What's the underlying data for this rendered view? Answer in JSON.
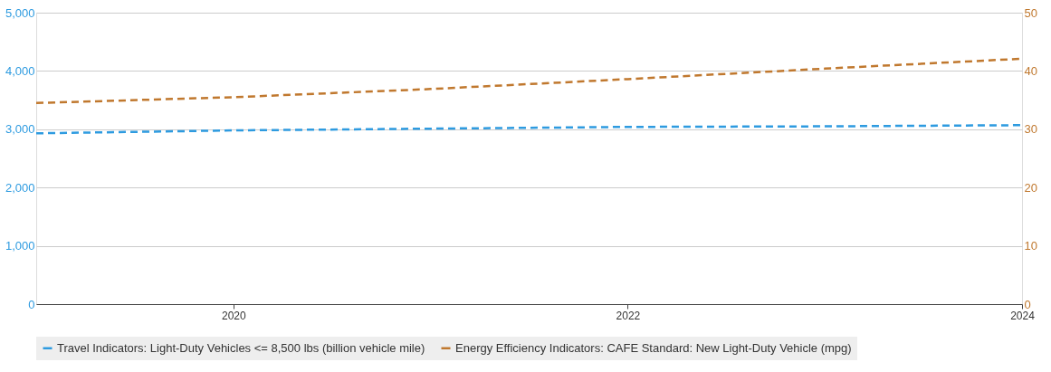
{
  "chart_data": {
    "type": "line",
    "x": [
      2019,
      2020,
      2021,
      2022,
      2023,
      2024
    ],
    "xlim": [
      2019,
      2024
    ],
    "xticks": [
      2020,
      2022,
      2024
    ],
    "ylim": [
      0,
      5000
    ],
    "yticks": [
      0,
      {
        "value": 1000,
        "label": "1,000"
      },
      {
        "value": 2000,
        "label": "2,000"
      },
      {
        "value": 3000,
        "label": "3,000"
      },
      {
        "value": 4000,
        "label": "4,000"
      },
      {
        "value": 5000,
        "label": "5,000"
      }
    ],
    "y2lim": [
      0,
      50
    ],
    "y2ticks": [
      0,
      10,
      20,
      30,
      40,
      50
    ],
    "grid": "y",
    "legend": "bottom",
    "line_style": "dashed",
    "marker": "none",
    "series": [
      {
        "name": "Travel Indicators: Light-Duty Vehicles <= 8,500 lbs (billion vehicle mile)",
        "color": "#2e9be0",
        "values": [
          2930,
          2980,
          3010,
          3040,
          3050,
          3070
        ]
      },
      {
        "name": "Energy Efficiency Indicators: CAFE Standard: New Light-Duty Vehicle (mpg)",
        "color": "#c0782e",
        "axis": "y2",
        "values": [
          34.5,
          35.5,
          36.9,
          38.6,
          40.4,
          42.1
        ]
      }
    ]
  }
}
